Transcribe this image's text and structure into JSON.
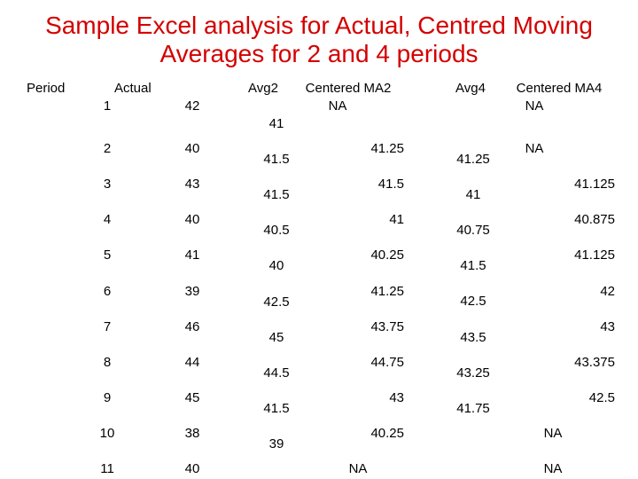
{
  "title_line1": "Sample Excel analysis for Actual,   Centred Moving",
  "title_line2": "Averages for 2 and 4 periods",
  "headers": {
    "period": "Period",
    "actual": "Actual",
    "avg2": "Avg2",
    "cma2": "Centered MA2",
    "avg4": "Avg4",
    "cma4": "Centered MA4"
  },
  "rows": [
    {
      "period": "1",
      "actual": "42",
      "cma2": "NA",
      "cma4": "NA"
    },
    {
      "period": "2",
      "actual": "40",
      "cma2": "41.25",
      "cma4": "NA"
    },
    {
      "period": "3",
      "actual": "43",
      "cma2": "41.5",
      "cma4": "41.125"
    },
    {
      "period": "4",
      "actual": "40",
      "cma2": "41",
      "cma4": "40.875"
    },
    {
      "period": "5",
      "actual": "41",
      "cma2": "40.25",
      "cma4": "41.125"
    },
    {
      "period": "6",
      "actual": "39",
      "cma2": "41.25",
      "cma4": "42"
    },
    {
      "period": "7",
      "actual": "46",
      "cma2": "43.75",
      "cma4": "43"
    },
    {
      "period": "8",
      "actual": "44",
      "cma2": "44.75",
      "cma4": "43.375"
    },
    {
      "period": "9",
      "actual": "45",
      "cma2": "43",
      "cma4": "42.5"
    },
    {
      "period": "10",
      "actual": "38",
      "cma2": "40.25",
      "cma4": "NA"
    },
    {
      "period": "11",
      "actual": "40",
      "cma2": "NA",
      "cma4": "NA"
    }
  ],
  "avg2": [
    "41",
    "41.5",
    "41.5",
    "40.5",
    "40",
    "42.5",
    "45",
    "44.5",
    "41.5",
    "39"
  ],
  "avg4": [
    "41.25",
    "41",
    "40.75",
    "41.5",
    "42.5",
    "43.5",
    "43.25",
    "41.75"
  ]
}
